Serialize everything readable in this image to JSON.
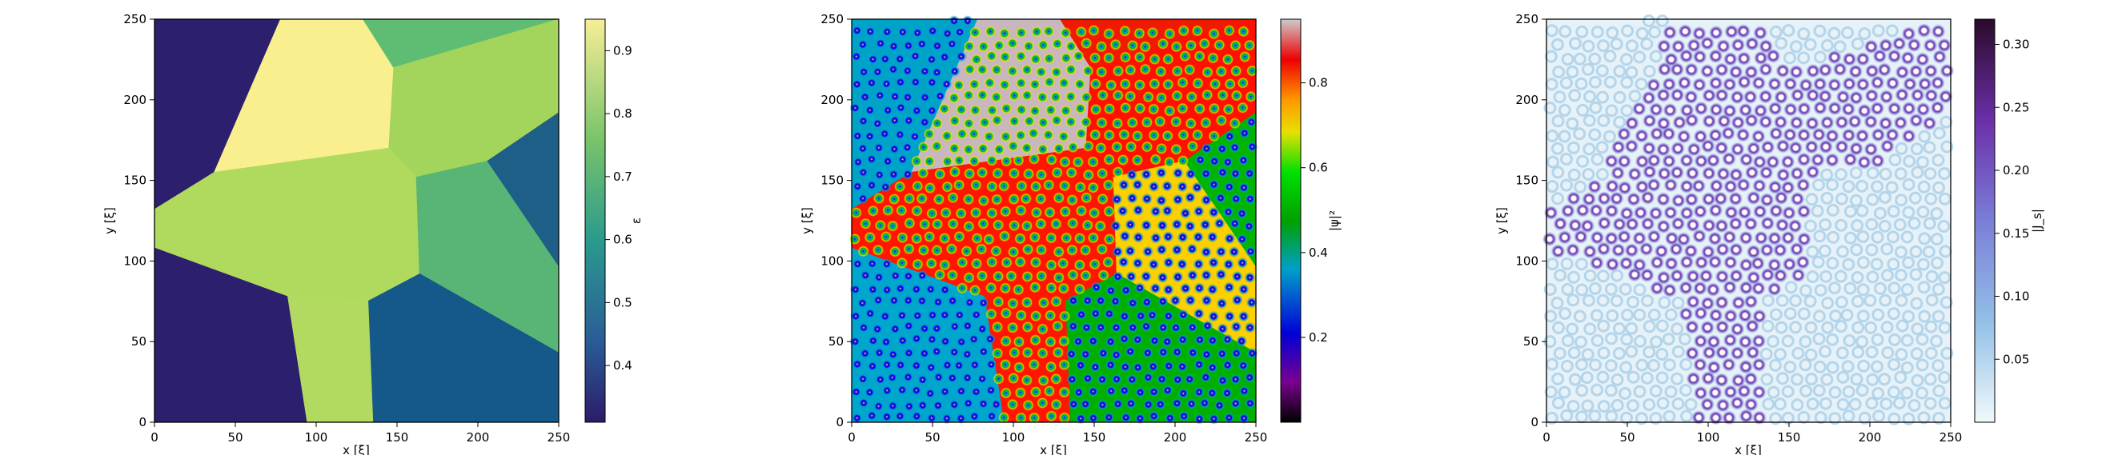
{
  "chart_data": [
    {
      "type": "heatmap",
      "panel": "epsilon",
      "xlabel": "x [ξ]",
      "ylabel": "y [ξ]",
      "xlim": [
        0,
        250
      ],
      "ylim": [
        0,
        250
      ],
      "x_ticks": [
        0,
        50,
        100,
        150,
        200,
        250
      ],
      "y_ticks": [
        0,
        50,
        100,
        150,
        200,
        250
      ],
      "colorbar": {
        "label": "ε",
        "colormap": "viridis-like",
        "range": [
          0.31,
          0.95
        ],
        "ticks": [
          "0.4",
          "0.5",
          "0.6",
          "0.7",
          "0.8",
          "0.9"
        ],
        "tick_values": [
          0.4,
          0.5,
          0.6,
          0.7,
          0.8,
          0.9
        ]
      },
      "regions": [
        {
          "value": 0.33,
          "color": "#2c1f6d",
          "polygon": [
            [
              0,
              250
            ],
            [
              78,
              250
            ],
            [
              37,
              155
            ],
            [
              0,
              132
            ]
          ]
        },
        {
          "value": 0.94,
          "color": "#f9ef8f",
          "polygon": [
            [
              78,
              250
            ],
            [
              129,
              250
            ],
            [
              148,
              220
            ],
            [
              145,
              170
            ],
            [
              37,
              155
            ]
          ]
        },
        {
          "value": 0.78,
          "color": "#5ebd72",
          "polygon": [
            [
              129,
              250
            ],
            [
              250,
              250
            ],
            [
              148,
              220
            ]
          ]
        },
        {
          "value": 0.84,
          "color": "#a3d45b",
          "polygon": [
            [
              148,
              220
            ],
            [
              250,
              250
            ],
            [
              250,
              192
            ],
            [
              206,
              162
            ],
            [
              162,
              152
            ],
            [
              145,
              170
            ]
          ]
        },
        {
          "value": 0.84,
          "color": "#b0da5e",
          "polygon": [
            [
              37,
              155
            ],
            [
              145,
              170
            ],
            [
              162,
              152
            ],
            [
              164,
              92
            ],
            [
              132,
              75
            ],
            [
              82,
              78
            ],
            [
              0,
              108
            ],
            [
              0,
              132
            ]
          ]
        },
        {
          "value": 0.74,
          "color": "#59b575",
          "polygon": [
            [
              162,
              152
            ],
            [
              206,
              162
            ],
            [
              250,
              97
            ],
            [
              250,
              43
            ],
            [
              164,
              92
            ]
          ]
        },
        {
          "value": 0.52,
          "color": "#1e5f88",
          "polygon": [
            [
              206,
              162
            ],
            [
              250,
              192
            ],
            [
              250,
              97
            ]
          ]
        },
        {
          "value": 0.52,
          "color": "#15598a",
          "polygon": [
            [
              132,
              75
            ],
            [
              164,
              92
            ],
            [
              250,
              43
            ],
            [
              250,
              0
            ],
            [
              135,
              0
            ]
          ]
        },
        {
          "value": 0.84,
          "color": "#b3da60",
          "polygon": [
            [
              82,
              78
            ],
            [
              132,
              75
            ],
            [
              135,
              0
            ],
            [
              94,
              0
            ]
          ]
        },
        {
          "value": 0.33,
          "color": "#2c1f6d",
          "polygon": [
            [
              0,
              108
            ],
            [
              82,
              78
            ],
            [
              94,
              0
            ],
            [
              0,
              0
            ]
          ]
        }
      ]
    },
    {
      "type": "heatmap",
      "panel": "order-parameter",
      "xlabel": "x [ξ]",
      "ylabel": "y [ξ]",
      "xlim": [
        0,
        250
      ],
      "ylim": [
        0,
        250
      ],
      "x_ticks": [
        0,
        50,
        100,
        150,
        200,
        250
      ],
      "y_ticks": [
        0,
        50,
        100,
        150,
        200,
        250
      ],
      "colorbar": {
        "label": "|ψ|²",
        "colormap": "spectral-like",
        "range": [
          0,
          0.95
        ],
        "ticks": [
          "0.2",
          "0.4",
          "0.6",
          "0.8"
        ],
        "tick_values": [
          0.2,
          0.4,
          0.6,
          0.8
        ]
      },
      "regions": [
        {
          "color": "#00a3c8",
          "polygon": [
            [
              0,
              250
            ],
            [
              78,
              250
            ],
            [
              37,
              155
            ],
            [
              0,
              132
            ]
          ]
        },
        {
          "color": "#c8b7be",
          "polygon": [
            [
              78,
              250
            ],
            [
              129,
              250
            ],
            [
              148,
              220
            ],
            [
              145,
              170
            ],
            [
              37,
              155
            ]
          ]
        },
        {
          "color": "#f01a00",
          "polygon": [
            [
              129,
              250
            ],
            [
              250,
              250
            ],
            [
              148,
              220
            ]
          ]
        },
        {
          "color": "#ff1000",
          "polygon": [
            [
              148,
              220
            ],
            [
              250,
              250
            ],
            [
              250,
              192
            ],
            [
              206,
              162
            ],
            [
              162,
              152
            ],
            [
              145,
              170
            ]
          ]
        },
        {
          "color": "#ff1500",
          "polygon": [
            [
              37,
              155
            ],
            [
              145,
              170
            ],
            [
              162,
              152
            ],
            [
              164,
              92
            ],
            [
              132,
              75
            ],
            [
              82,
              78
            ],
            [
              0,
              108
            ],
            [
              0,
              132
            ]
          ]
        },
        {
          "color": "#ffd000",
          "polygon": [
            [
              162,
              152
            ],
            [
              206,
              162
            ],
            [
              250,
              97
            ],
            [
              250,
              43
            ],
            [
              164,
              92
            ]
          ]
        },
        {
          "color": "#00b400",
          "polygon": [
            [
              206,
              162
            ],
            [
              250,
              192
            ],
            [
              250,
              97
            ]
          ]
        },
        {
          "color": "#00b000",
          "polygon": [
            [
              132,
              75
            ],
            [
              164,
              92
            ],
            [
              250,
              43
            ],
            [
              250,
              0
            ],
            [
              135,
              0
            ]
          ]
        },
        {
          "color": "#ff1500",
          "polygon": [
            [
              82,
              78
            ],
            [
              132,
              75
            ],
            [
              135,
              0
            ],
            [
              94,
              0
            ]
          ]
        },
        {
          "color": "#00a6cc",
          "polygon": [
            [
              0,
              108
            ],
            [
              82,
              78
            ],
            [
              94,
              0
            ],
            [
              0,
              0
            ]
          ]
        }
      ]
    },
    {
      "type": "heatmap",
      "panel": "supercurrent",
      "xlabel": "x [ξ]",
      "ylabel": "y [ξ]",
      "xlim": [
        0,
        250
      ],
      "ylim": [
        0,
        250
      ],
      "x_ticks": [
        0,
        50,
        100,
        150,
        200,
        250
      ],
      "y_ticks": [
        0,
        50,
        100,
        150,
        200,
        250
      ],
      "colorbar": {
        "label": "|J_s|",
        "colormap": "blue-purple",
        "range": [
          0,
          0.32
        ],
        "ticks": [
          "0.05",
          "0.10",
          "0.15",
          "0.20",
          "0.25",
          "0.30"
        ],
        "tick_values": [
          0.05,
          0.1,
          0.15,
          0.2,
          0.25,
          0.3
        ]
      }
    }
  ]
}
